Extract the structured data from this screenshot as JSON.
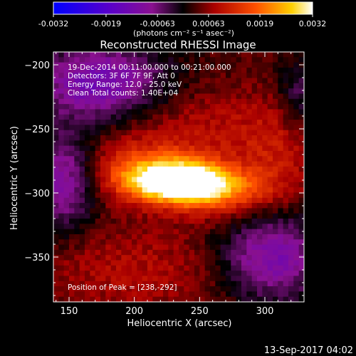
{
  "colorbar": {
    "tick_labels": [
      "-0.0032",
      "-0.0019",
      "-0.00063",
      "0.00063",
      "0.0019",
      "0.0032"
    ],
    "tick_values": [
      -0.0032,
      -0.0019,
      -0.00063,
      0.00063,
      0.0019,
      0.0032
    ],
    "range": [
      -0.0032,
      0.0032
    ],
    "units_label": "(photons cm⁻² s⁻¹ asec⁻²)",
    "colors": [
      "#0000ff",
      "#5a00c8",
      "#8a1090",
      "#000000",
      "#aa0000",
      "#ff5000",
      "#ffd000",
      "#ffffff"
    ]
  },
  "chart_data": {
    "type": "heatmap",
    "title": "Reconstructed RHESSI Image",
    "xlabel": "Heliocentric X (arcsec)",
    "ylabel": "Heliocentric Y (arcsec)",
    "xlim": [
      138,
      330
    ],
    "ylim": [
      -385,
      -190
    ],
    "x_ticks": [
      150,
      200,
      250,
      300
    ],
    "y_ticks": [
      -200,
      -250,
      -300,
      -350
    ],
    "x_tick_labels": [
      "150",
      "200",
      "250",
      "300"
    ],
    "y_tick_labels": [
      "−200",
      "−250",
      "−300",
      "−350"
    ],
    "annotations": [
      "19-Dec-2014 00:11:00.000 to 00:21:00.000",
      "Detectors: 3F 6F 7F 9F, Att 0",
      "Energy Range: 12.0 - 25.0 keV",
      "Clean    Total counts: 1.40E+04"
    ],
    "peak_label": "Position of Peak = [238,-292]",
    "peak": [
      238,
      -292
    ],
    "blobs": [
      {
        "x": 238,
        "y": -292,
        "sx": 24,
        "sy": 10,
        "amp": 0.0032
      },
      {
        "x": 212,
        "y": -285,
        "sx": 30,
        "sy": 14,
        "amp": 0.0016
      },
      {
        "x": 270,
        "y": -300,
        "sx": 30,
        "sy": 14,
        "amp": 0.0012
      },
      {
        "x": 240,
        "y": -250,
        "sx": 60,
        "sy": 22,
        "amp": 0.0006
      },
      {
        "x": 200,
        "y": -360,
        "sx": 60,
        "sy": 25,
        "amp": 0.0005
      },
      {
        "x": 310,
        "y": -270,
        "sx": 20,
        "sy": 25,
        "amp": 0.0005
      },
      {
        "x": 175,
        "y": -215,
        "sx": 35,
        "sy": 22,
        "amp": -0.0018
      },
      {
        "x": 145,
        "y": -290,
        "sx": 18,
        "sy": 28,
        "amp": -0.0015
      },
      {
        "x": 305,
        "y": -350,
        "sx": 28,
        "sy": 25,
        "amp": -0.0016
      },
      {
        "x": 325,
        "y": -225,
        "sx": 10,
        "sy": 20,
        "amp": -0.0008
      }
    ],
    "grid": false
  },
  "footer": {
    "timestamp": "13-Sep-2017 04:02"
  }
}
